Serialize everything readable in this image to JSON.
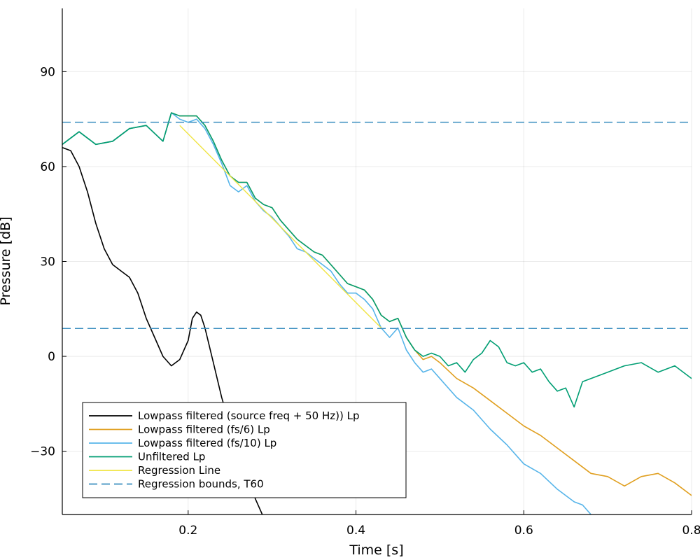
{
  "chart_data": {
    "type": "line",
    "title": "",
    "xlabel": "Time [s]",
    "ylabel": "Pressure [dB]",
    "xlim": [
      0.05,
      0.8
    ],
    "ylim": [
      -50,
      110
    ],
    "xticks": [
      0.2,
      0.4,
      0.6,
      0.8
    ],
    "xtick_labels": [
      "0.2",
      "0.4",
      "0.6",
      "0.8"
    ],
    "yticks": [
      -30,
      0,
      30,
      60,
      90
    ],
    "ytick_labels": [
      "−30",
      "0",
      "30",
      "60",
      "90"
    ],
    "grid": true,
    "legend_position": "bottom-left",
    "series": [
      {
        "name": "Lowpass filtered (source freq + 50 Hz)) Lp",
        "color": "#000000",
        "dash": false,
        "x": [
          0.05,
          0.06,
          0.07,
          0.08,
          0.09,
          0.1,
          0.11,
          0.12,
          0.13,
          0.14,
          0.15,
          0.16,
          0.17,
          0.18,
          0.19,
          0.2,
          0.205,
          0.21,
          0.215,
          0.22,
          0.23,
          0.24,
          0.25,
          0.26,
          0.27,
          0.28,
          0.29,
          0.3,
          0.31,
          0.325
        ],
        "y": [
          66,
          65,
          60,
          52,
          42,
          34,
          29,
          27,
          25,
          20,
          12,
          6,
          0,
          -3,
          -1,
          5,
          12,
          14,
          13,
          9,
          -2,
          -13,
          -22,
          -30,
          -38,
          -45,
          -51,
          -57,
          -62,
          -70
        ]
      },
      {
        "name": "Lowpass filtered (fs/6) Lp",
        "color": "#e09f1f",
        "dash": false,
        "x": [
          0.05,
          0.07,
          0.09,
          0.11,
          0.13,
          0.15,
          0.17,
          0.18,
          0.19,
          0.2,
          0.21,
          0.22,
          0.23,
          0.24,
          0.25,
          0.26,
          0.27,
          0.28,
          0.29,
          0.3,
          0.31,
          0.32,
          0.33,
          0.34,
          0.35,
          0.36,
          0.37,
          0.38,
          0.39,
          0.4,
          0.41,
          0.42,
          0.43,
          0.44,
          0.45,
          0.46,
          0.47,
          0.48,
          0.49,
          0.5,
          0.52,
          0.54,
          0.56,
          0.58,
          0.6,
          0.62,
          0.64,
          0.66,
          0.68,
          0.7,
          0.72,
          0.74,
          0.76,
          0.78,
          0.8
        ],
        "y": [
          67,
          71,
          67,
          68,
          72,
          73,
          68,
          77,
          76,
          76,
          76,
          73,
          68,
          62,
          57,
          55,
          55,
          50,
          48,
          47,
          43,
          40,
          37,
          35,
          33,
          32,
          29,
          26,
          23,
          22,
          21,
          18,
          13,
          11,
          12,
          6,
          2,
          -1,
          0,
          -2,
          -7,
          -10,
          -14,
          -18,
          -22,
          -25,
          -29,
          -33,
          -37,
          -38,
          -41,
          -38,
          -37,
          -40,
          -44
        ]
      },
      {
        "name": "Lowpass filtered (fs/10) Lp",
        "color": "#56b4e9",
        "dash": false,
        "x": [
          0.05,
          0.07,
          0.09,
          0.11,
          0.13,
          0.15,
          0.17,
          0.18,
          0.19,
          0.2,
          0.21,
          0.22,
          0.23,
          0.24,
          0.25,
          0.26,
          0.27,
          0.28,
          0.29,
          0.3,
          0.31,
          0.32,
          0.33,
          0.34,
          0.35,
          0.36,
          0.37,
          0.38,
          0.39,
          0.4,
          0.41,
          0.42,
          0.43,
          0.44,
          0.45,
          0.46,
          0.47,
          0.48,
          0.49,
          0.5,
          0.52,
          0.54,
          0.56,
          0.58,
          0.6,
          0.62,
          0.64,
          0.66,
          0.67,
          0.68,
          0.7
        ],
        "y": [
          67,
          71,
          67,
          68,
          72,
          73,
          68,
          77,
          75,
          74,
          75,
          72,
          67,
          61,
          54,
          52,
          54,
          49,
          46,
          44,
          41,
          38,
          34,
          33,
          31,
          29,
          27,
          23,
          20,
          20,
          18,
          15,
          9,
          6,
          9,
          2,
          -2,
          -5,
          -4,
          -7,
          -13,
          -17,
          -23,
          -28,
          -34,
          -37,
          -42,
          -46,
          -47,
          -50,
          -58
        ]
      },
      {
        "name": "Unfiltered Lp",
        "color": "#009e73",
        "dash": false,
        "x": [
          0.05,
          0.07,
          0.09,
          0.11,
          0.13,
          0.15,
          0.17,
          0.18,
          0.19,
          0.2,
          0.21,
          0.22,
          0.23,
          0.24,
          0.25,
          0.26,
          0.27,
          0.28,
          0.29,
          0.3,
          0.31,
          0.32,
          0.33,
          0.34,
          0.35,
          0.36,
          0.37,
          0.38,
          0.39,
          0.4,
          0.41,
          0.42,
          0.43,
          0.44,
          0.45,
          0.46,
          0.47,
          0.48,
          0.49,
          0.5,
          0.51,
          0.52,
          0.53,
          0.54,
          0.55,
          0.56,
          0.57,
          0.58,
          0.59,
          0.6,
          0.61,
          0.62,
          0.63,
          0.64,
          0.65,
          0.66,
          0.67,
          0.68,
          0.7,
          0.72,
          0.74,
          0.76,
          0.78,
          0.8
        ],
        "y": [
          67,
          71,
          67,
          68,
          72,
          73,
          68,
          77,
          76,
          76,
          76,
          73,
          68,
          62,
          57,
          55,
          55,
          50,
          48,
          47,
          43,
          40,
          37,
          35,
          33,
          32,
          29,
          26,
          23,
          22,
          21,
          18,
          13,
          11,
          12,
          6,
          2,
          0,
          1,
          0,
          -3,
          -2,
          -5,
          -1,
          1,
          5,
          3,
          -2,
          -3,
          -2,
          -5,
          -4,
          -8,
          -11,
          -10,
          -16,
          -8,
          -7,
          -5,
          -3,
          -2,
          -5,
          -3,
          -7
        ]
      },
      {
        "name": "Regression Line",
        "color": "#f0e442",
        "dash": false,
        "x": [
          0.19,
          0.43
        ],
        "y": [
          73,
          9
        ]
      }
    ],
    "reference_lines": {
      "name": "Regression bounds, T60",
      "color": "#3a8ebf",
      "dash": true,
      "y": [
        74,
        8.8
      ]
    }
  }
}
